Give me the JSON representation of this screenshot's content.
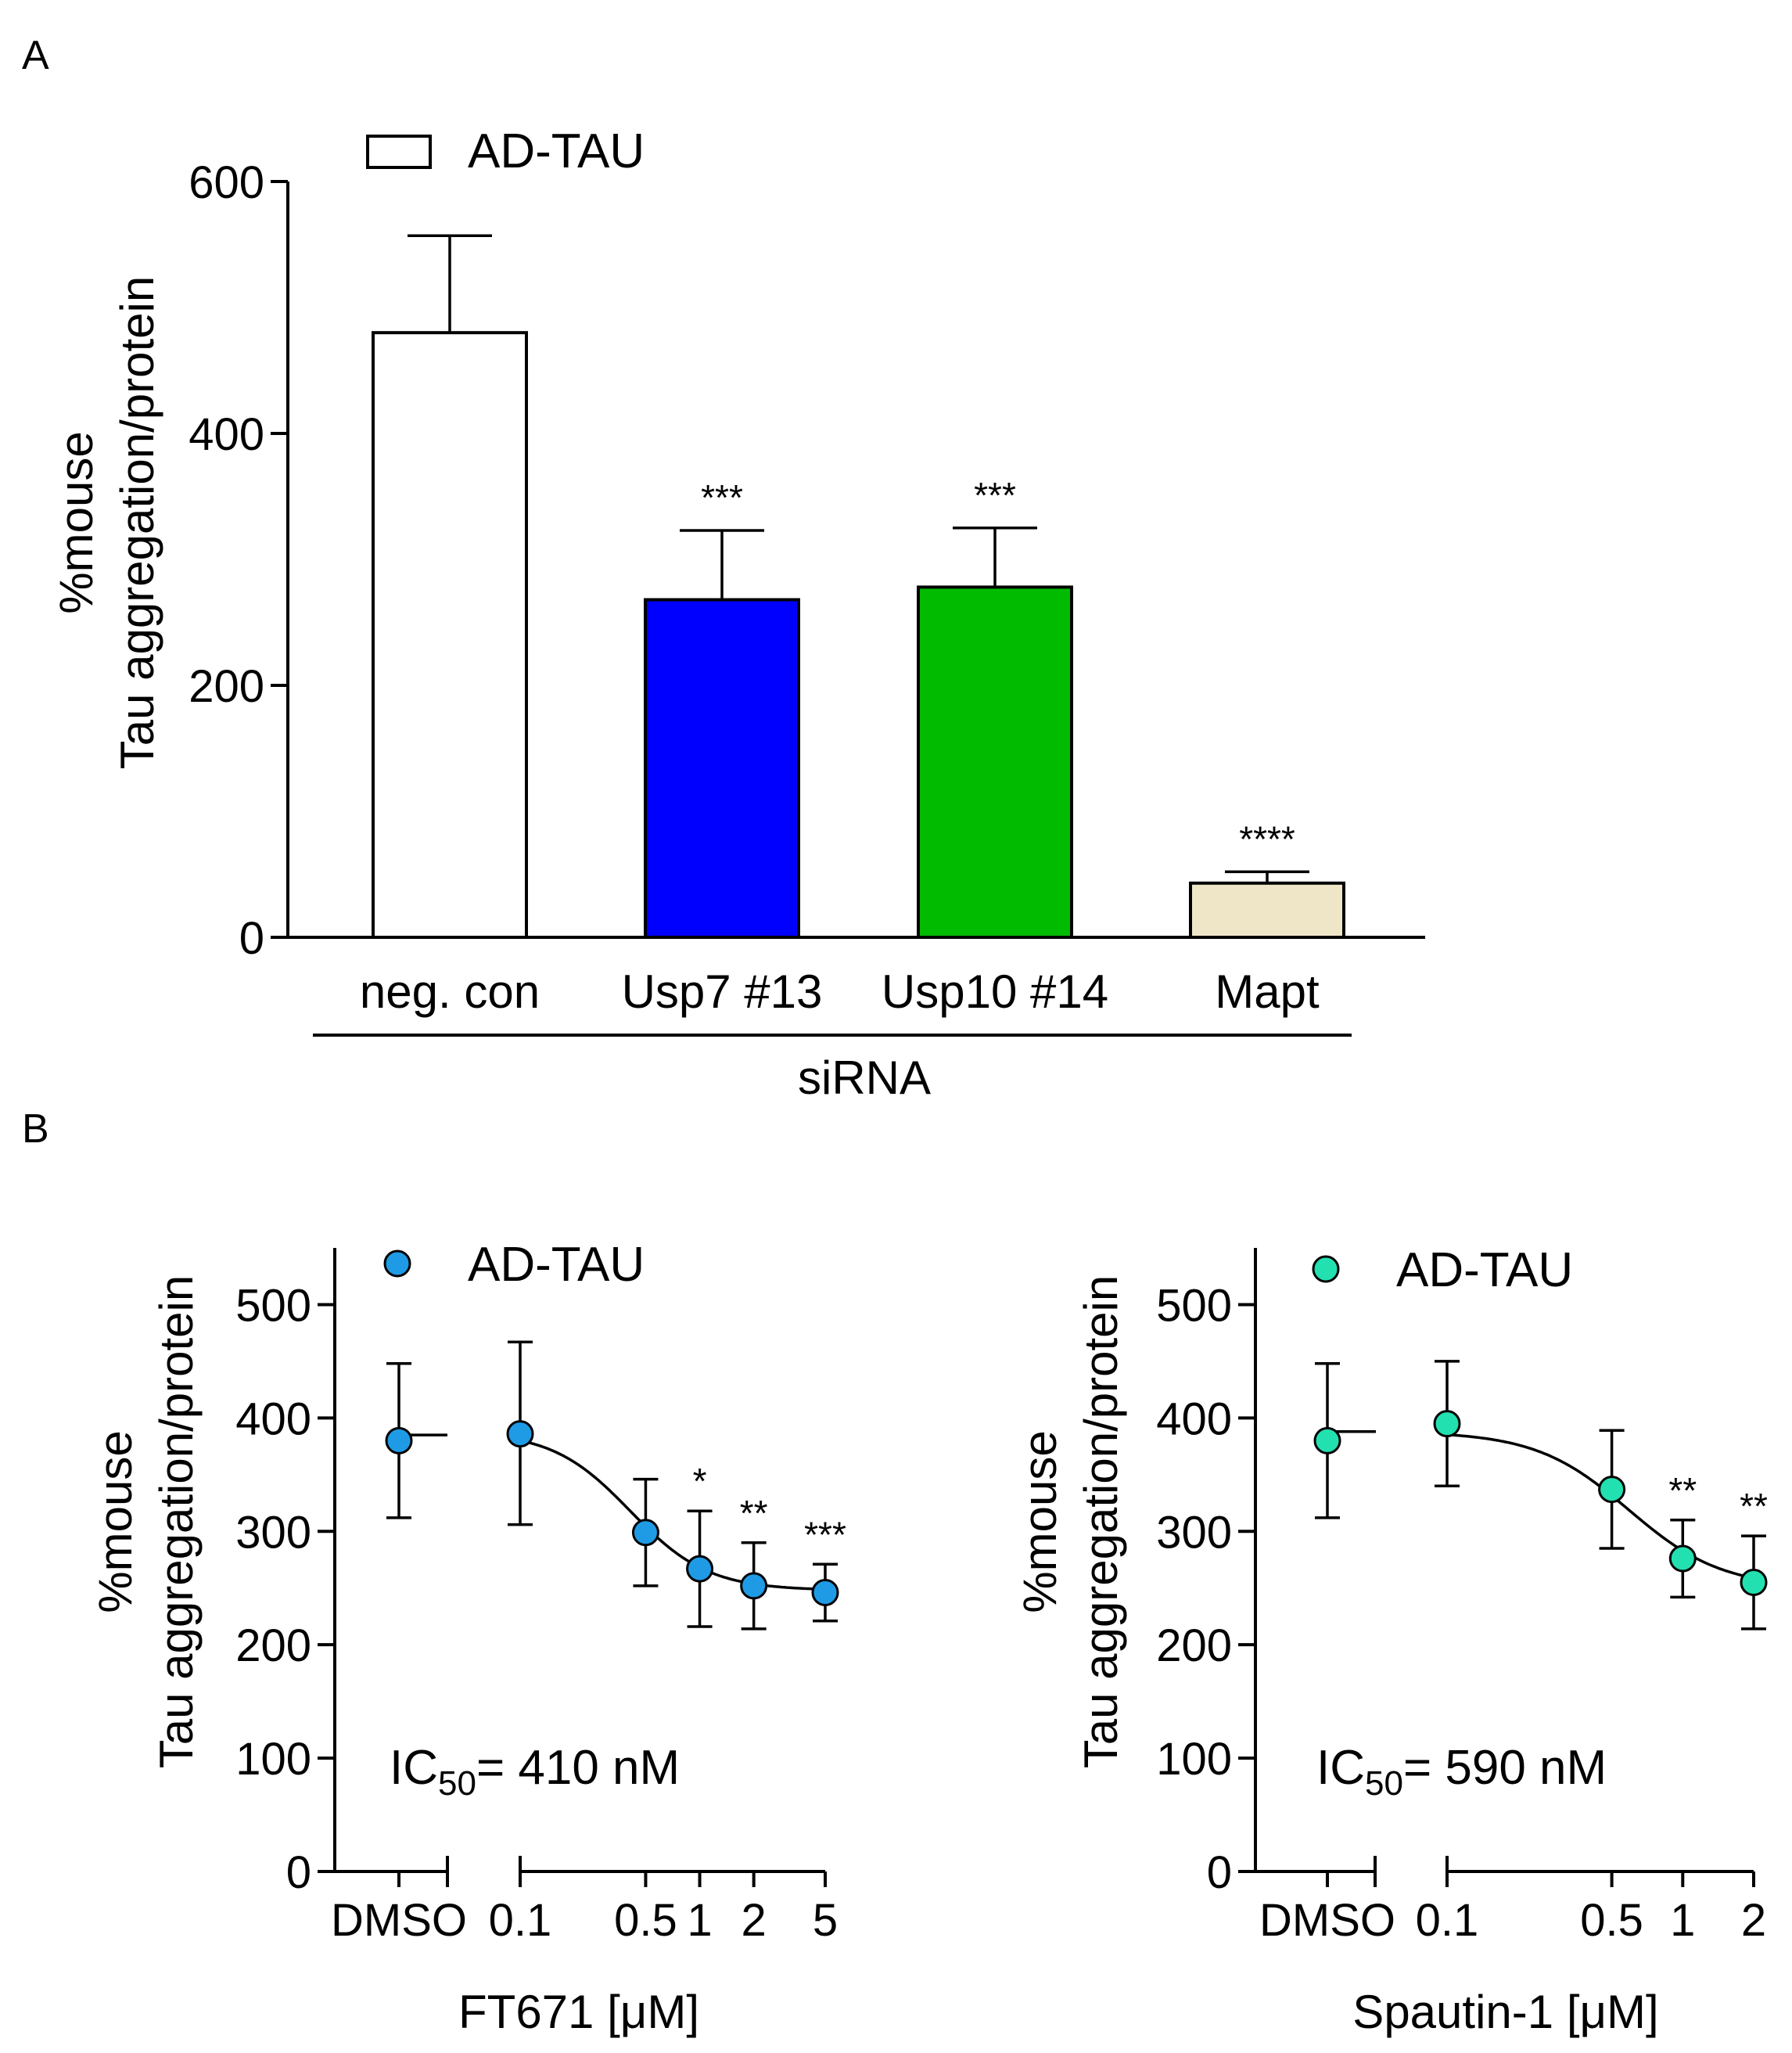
{
  "panels": {
    "a": {
      "label": "A"
    },
    "b": {
      "label": "B"
    }
  },
  "chart_data": [
    {
      "type": "bar",
      "panel": "A",
      "legend": "AD-TAU",
      "ylabel_line1": "%mouse",
      "ylabel_line2": "Tau aggregation/protein",
      "xgroup_label": "siRNA",
      "ylim": [
        0,
        600
      ],
      "yticks": [
        0,
        200,
        400,
        600
      ],
      "categories": [
        "neg. con",
        "Usp7 #13",
        "Usp10 #14",
        "Mapt"
      ],
      "values": [
        480,
        268,
        278,
        43
      ],
      "errors": [
        77,
        55,
        47,
        9
      ],
      "colors": [
        "#ffffff",
        "#0000ff",
        "#00bb00",
        "#efe6c8"
      ],
      "significance": [
        "",
        "***",
        "***",
        "****"
      ]
    },
    {
      "type": "scatter",
      "panel": "B-left",
      "legend": "AD-TAU",
      "marker_color": "#1f9be6",
      "ylabel_line1": "%mouse",
      "ylabel_line2": "Tau aggregation/protein",
      "xlabel": "FT671 [μM]",
      "ylim": [
        0,
        550
      ],
      "yticks": [
        0,
        100,
        200,
        300,
        400,
        500
      ],
      "ic50_prefix": "IC",
      "ic50_sub": "50",
      "ic50_value": "= 410 nM",
      "control": {
        "label": "DMSO",
        "value": 380,
        "err_low": 68,
        "err_high": 68,
        "fit_level": 385
      },
      "x_tick_labels": [
        "0.1",
        "0.5",
        "1",
        "2",
        "5"
      ],
      "x": [
        0.1,
        0.5,
        1,
        2,
        5
      ],
      "values": [
        386,
        299,
        267,
        252,
        246
      ],
      "err_low": [
        80,
        47,
        51,
        38,
        25
      ],
      "err_high": [
        81,
        47,
        51,
        38,
        25
      ],
      "significance": [
        "",
        "",
        "*",
        "**",
        "***"
      ],
      "fit": {
        "top": 388,
        "bottom": 248,
        "ic50": 0.41,
        "hill": 2.0
      }
    },
    {
      "type": "scatter",
      "panel": "B-right",
      "legend": "AD-TAU",
      "marker_color": "#22e0b0",
      "ylabel_line1": "%mouse",
      "ylabel_line2": "Tau aggregation/protein",
      "xlabel": "Spautin-1 [μM]",
      "ylim": [
        0,
        550
      ],
      "yticks": [
        0,
        100,
        200,
        300,
        400,
        500
      ],
      "ic50_prefix": "IC",
      "ic50_sub": "50",
      "ic50_value": "= 590 nM",
      "control": {
        "label": "DMSO",
        "value": 380,
        "err_low": 68,
        "err_high": 68,
        "fit_level": 388
      },
      "x_tick_labels": [
        "0.1",
        "0.5",
        "1",
        "2"
      ],
      "x": [
        0.1,
        0.5,
        1,
        2
      ],
      "values": [
        395,
        337,
        276,
        255
      ],
      "err_low": [
        55,
        52,
        34,
        41
      ],
      "err_high": [
        55,
        52,
        34,
        41
      ],
      "significance": [
        "",
        "",
        "**",
        "**"
      ],
      "fit": {
        "top": 388,
        "bottom": 250,
        "ic50": 0.59,
        "hill": 2.2
      }
    }
  ]
}
